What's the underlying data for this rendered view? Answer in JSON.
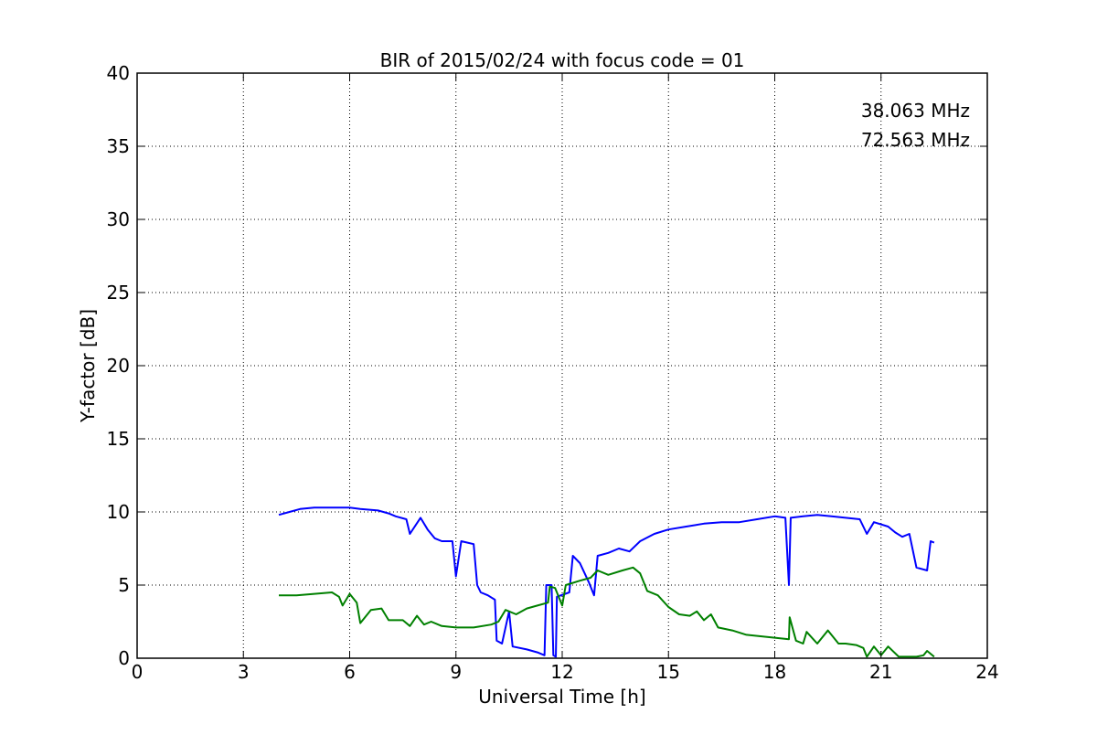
{
  "chart_data": {
    "type": "line",
    "title": "BIR of 2015/02/24 with focus code = 01",
    "xlabel": "Universal Time [h]",
    "ylabel": "Y-factor [dB]",
    "xlim": [
      0,
      24
    ],
    "ylim": [
      0,
      40
    ],
    "xticks": [
      0,
      3,
      6,
      9,
      12,
      15,
      18,
      21,
      24
    ],
    "yticks": [
      0,
      5,
      10,
      15,
      20,
      25,
      30,
      35,
      40
    ],
    "grid": true,
    "legend_position": "top-right",
    "series": [
      {
        "name": "38.063 MHz",
        "color": "#0000ff",
        "points": [
          [
            4.0,
            9.8
          ],
          [
            4.3,
            10.0
          ],
          [
            4.6,
            10.2
          ],
          [
            5.0,
            10.3
          ],
          [
            5.5,
            10.3
          ],
          [
            6.0,
            10.3
          ],
          [
            6.3,
            10.2
          ],
          [
            6.8,
            10.1
          ],
          [
            7.1,
            9.9
          ],
          [
            7.3,
            9.7
          ],
          [
            7.6,
            9.5
          ],
          [
            7.7,
            8.5
          ],
          [
            8.0,
            9.6
          ],
          [
            8.2,
            8.8
          ],
          [
            8.4,
            8.2
          ],
          [
            8.6,
            8.0
          ],
          [
            8.9,
            8.0
          ],
          [
            9.0,
            5.6
          ],
          [
            9.15,
            8.0
          ],
          [
            9.5,
            7.8
          ],
          [
            9.6,
            5.0
          ],
          [
            9.7,
            4.5
          ],
          [
            9.9,
            4.3
          ],
          [
            10.1,
            4.0
          ],
          [
            10.15,
            1.2
          ],
          [
            10.3,
            1.0
          ],
          [
            10.5,
            3.2
          ],
          [
            10.6,
            0.8
          ],
          [
            11.0,
            0.6
          ],
          [
            11.3,
            0.4
          ],
          [
            11.5,
            0.2
          ],
          [
            11.55,
            5.0
          ],
          [
            11.7,
            5.0
          ],
          [
            11.75,
            0.2
          ],
          [
            11.82,
            0.1
          ],
          [
            11.85,
            4.2
          ],
          [
            12.2,
            4.5
          ],
          [
            12.3,
            7.0
          ],
          [
            12.5,
            6.5
          ],
          [
            12.75,
            5.2
          ],
          [
            12.9,
            4.3
          ],
          [
            13.0,
            7.0
          ],
          [
            13.3,
            7.2
          ],
          [
            13.6,
            7.5
          ],
          [
            13.9,
            7.3
          ],
          [
            14.2,
            8.0
          ],
          [
            14.6,
            8.5
          ],
          [
            15.0,
            8.8
          ],
          [
            15.5,
            9.0
          ],
          [
            16.0,
            9.2
          ],
          [
            16.5,
            9.3
          ],
          [
            17.0,
            9.3
          ],
          [
            17.5,
            9.5
          ],
          [
            18.0,
            9.7
          ],
          [
            18.3,
            9.6
          ],
          [
            18.4,
            5.0
          ],
          [
            18.45,
            9.6
          ],
          [
            18.8,
            9.7
          ],
          [
            19.2,
            9.8
          ],
          [
            19.6,
            9.7
          ],
          [
            20.0,
            9.6
          ],
          [
            20.4,
            9.5
          ],
          [
            20.6,
            8.5
          ],
          [
            20.8,
            9.3
          ],
          [
            21.2,
            9.0
          ],
          [
            21.4,
            8.6
          ],
          [
            21.6,
            8.3
          ],
          [
            21.8,
            8.5
          ],
          [
            22.0,
            6.2
          ],
          [
            22.3,
            6.0
          ],
          [
            22.4,
            8.0
          ],
          [
            22.5,
            7.9
          ]
        ]
      },
      {
        "name": "72.563 MHz",
        "color": "#008000",
        "points": [
          [
            4.0,
            4.3
          ],
          [
            4.5,
            4.3
          ],
          [
            5.0,
            4.4
          ],
          [
            5.5,
            4.5
          ],
          [
            5.7,
            4.2
          ],
          [
            5.8,
            3.6
          ],
          [
            6.0,
            4.4
          ],
          [
            6.2,
            3.8
          ],
          [
            6.3,
            2.4
          ],
          [
            6.6,
            3.3
          ],
          [
            6.9,
            3.4
          ],
          [
            7.1,
            2.6
          ],
          [
            7.5,
            2.6
          ],
          [
            7.7,
            2.2
          ],
          [
            7.9,
            2.9
          ],
          [
            8.1,
            2.3
          ],
          [
            8.3,
            2.5
          ],
          [
            8.6,
            2.2
          ],
          [
            9.0,
            2.1
          ],
          [
            9.5,
            2.1
          ],
          [
            10.0,
            2.3
          ],
          [
            10.2,
            2.5
          ],
          [
            10.4,
            3.3
          ],
          [
            10.7,
            3.0
          ],
          [
            11.0,
            3.4
          ],
          [
            11.3,
            3.6
          ],
          [
            11.6,
            3.8
          ],
          [
            11.65,
            4.9
          ],
          [
            11.8,
            4.8
          ],
          [
            12.0,
            3.6
          ],
          [
            12.1,
            5.0
          ],
          [
            12.5,
            5.3
          ],
          [
            12.8,
            5.5
          ],
          [
            13.0,
            6.0
          ],
          [
            13.3,
            5.7
          ],
          [
            13.7,
            6.0
          ],
          [
            14.0,
            6.2
          ],
          [
            14.2,
            5.8
          ],
          [
            14.4,
            4.6
          ],
          [
            14.7,
            4.3
          ],
          [
            15.0,
            3.5
          ],
          [
            15.3,
            3.0
          ],
          [
            15.6,
            2.9
          ],
          [
            15.8,
            3.2
          ],
          [
            16.0,
            2.6
          ],
          [
            16.2,
            3.0
          ],
          [
            16.4,
            2.1
          ],
          [
            16.8,
            1.9
          ],
          [
            17.2,
            1.6
          ],
          [
            17.6,
            1.5
          ],
          [
            18.0,
            1.4
          ],
          [
            18.4,
            1.3
          ],
          [
            18.42,
            2.8
          ],
          [
            18.6,
            1.2
          ],
          [
            18.8,
            1.0
          ],
          [
            18.9,
            1.8
          ],
          [
            19.2,
            1.0
          ],
          [
            19.5,
            1.9
          ],
          [
            19.8,
            1.0
          ],
          [
            20.0,
            1.0
          ],
          [
            20.3,
            0.9
          ],
          [
            20.5,
            0.7
          ],
          [
            20.6,
            0.1
          ],
          [
            20.8,
            0.8
          ],
          [
            21.0,
            0.2
          ],
          [
            21.2,
            0.8
          ],
          [
            21.5,
            0.1
          ],
          [
            21.8,
            0.1
          ],
          [
            22.0,
            0.1
          ],
          [
            22.2,
            0.2
          ],
          [
            22.3,
            0.5
          ],
          [
            22.5,
            0.1
          ]
        ]
      }
    ]
  }
}
